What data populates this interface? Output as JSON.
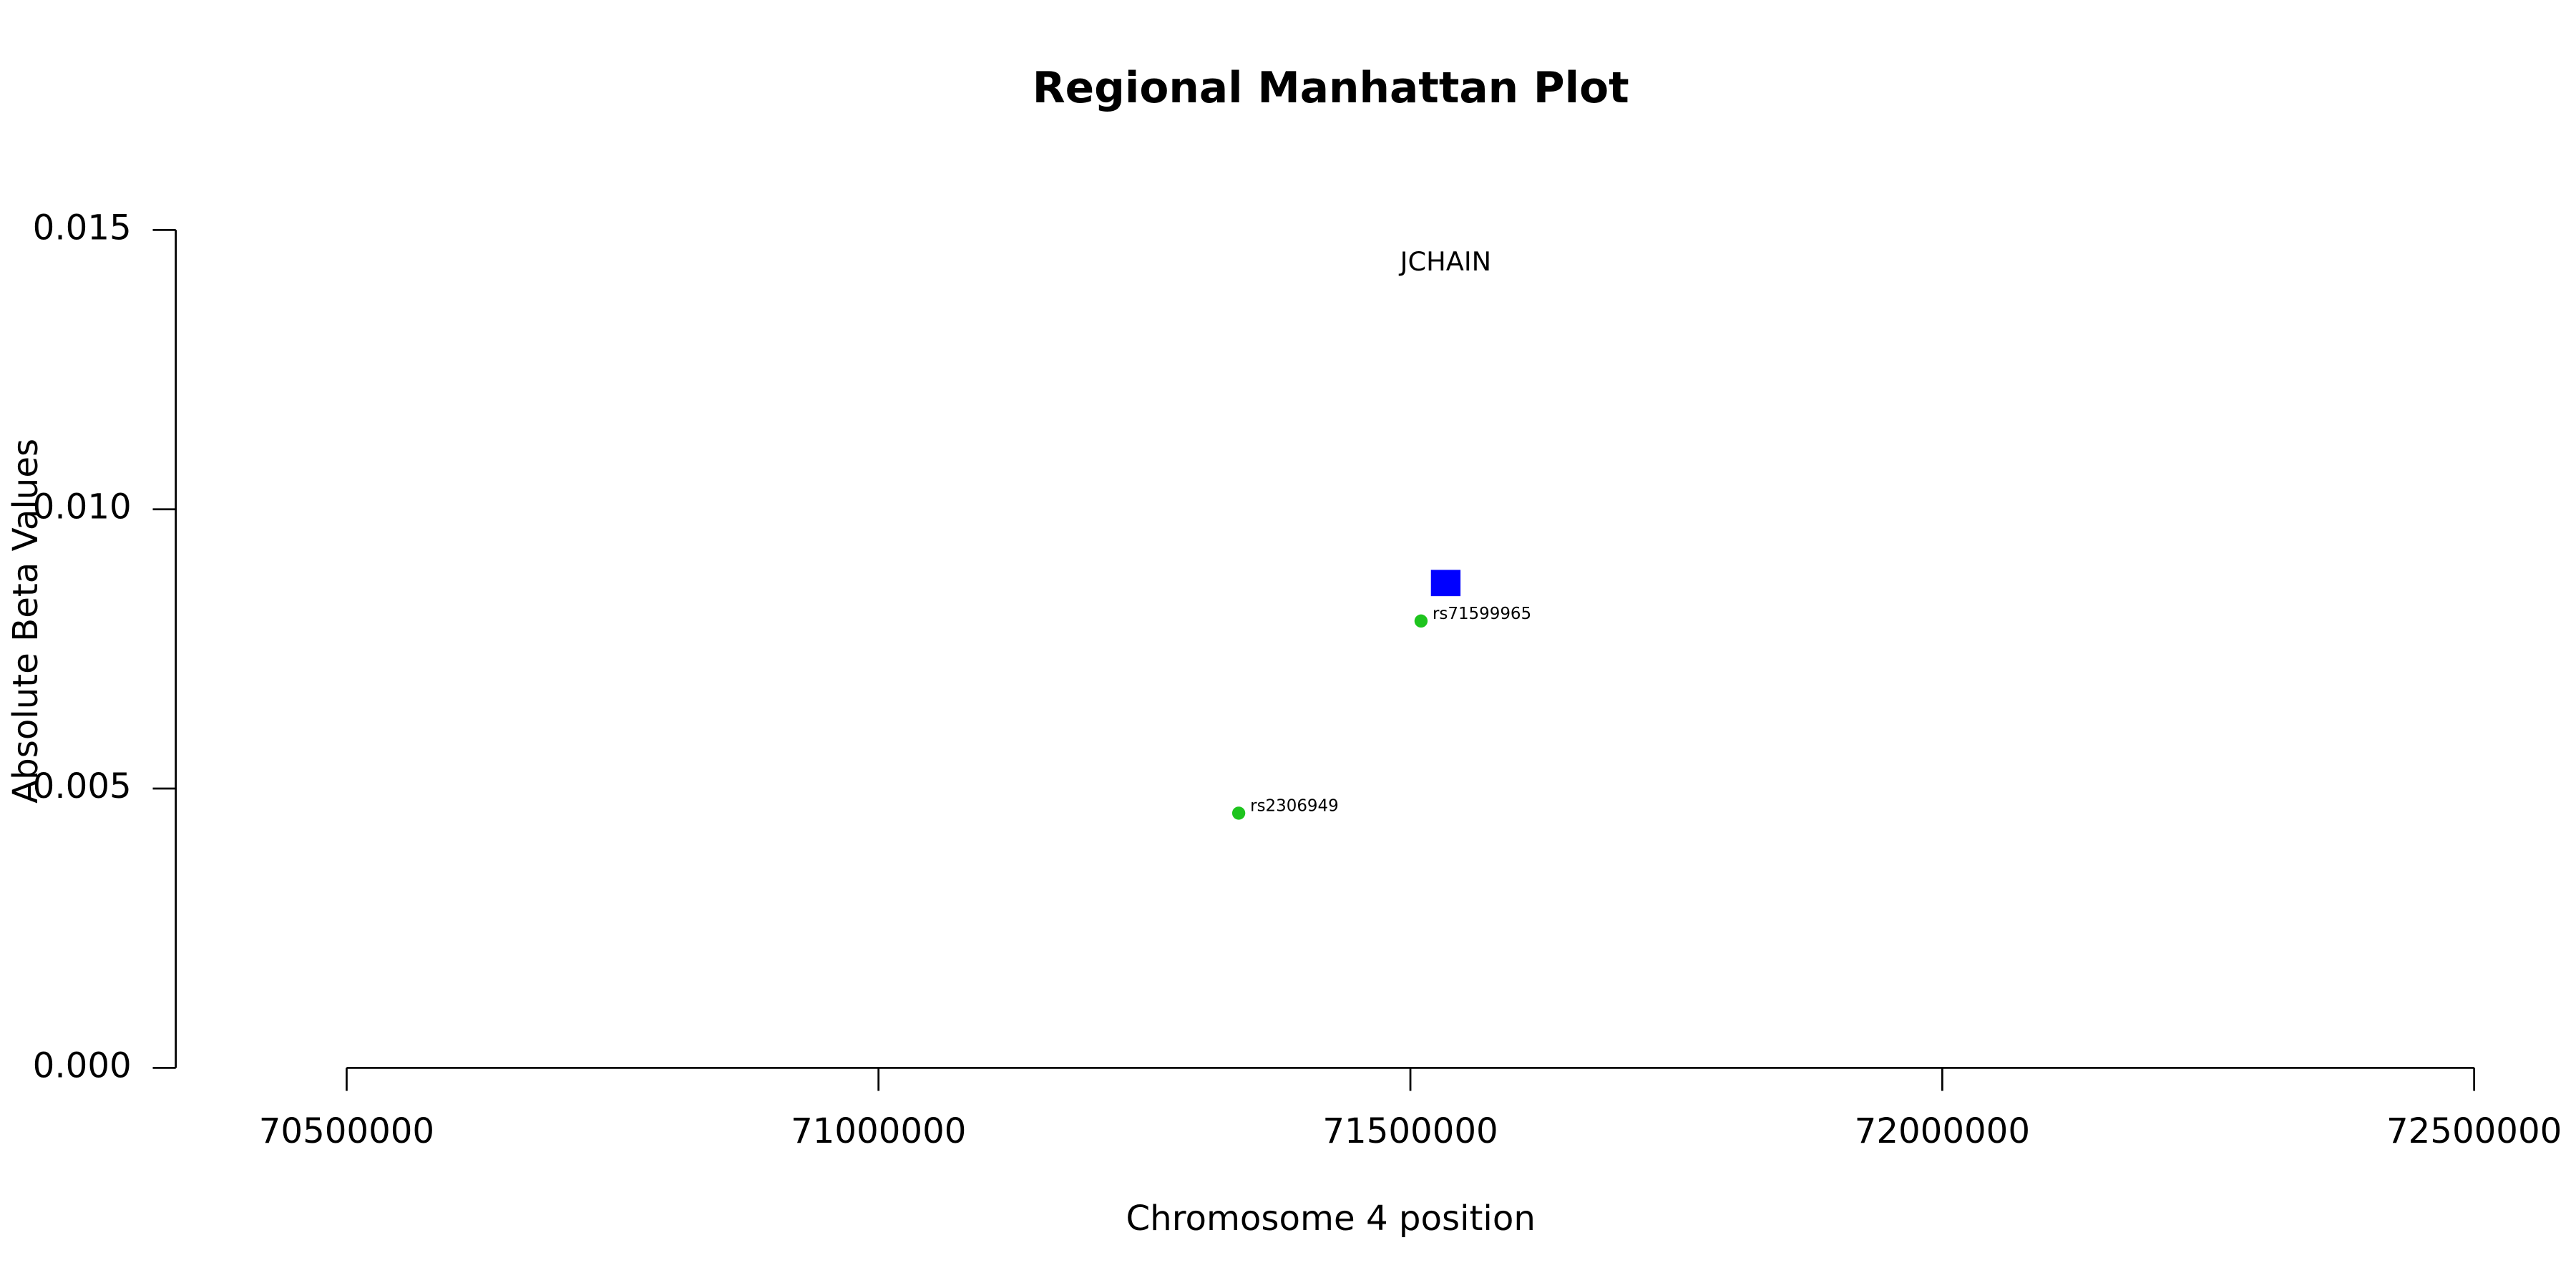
{
  "chart_data": {
    "type": "scatter",
    "title": "Regional Manhattan Plot",
    "x_label": "Chromosome 4 position",
    "y_label": "Absolute Beta Values",
    "xlim": [
      70500000,
      72500000
    ],
    "xticks": [
      70500000,
      71000000,
      71500000,
      72000000,
      72500000
    ],
    "ylim": [
      0,
      0.015
    ],
    "yticks": [
      {
        "value": 0,
        "label": "0.000"
      },
      0.005,
      {
        "value": 0.01,
        "label": "0.010"
      },
      0.015
    ],
    "series": [
      {
        "color": "#1ec41e",
        "x": [
          71338600,
          71510000
        ],
        "values": [
          0.00456,
          0.008
        ],
        "labels": [
          "rs2306949",
          "rs71599965"
        ]
      }
    ],
    "genes": [
      {
        "label": "JCHAIN",
        "x": 71533200,
        "y": 0.00868,
        "color": "#0000ff"
      }
    ]
  }
}
